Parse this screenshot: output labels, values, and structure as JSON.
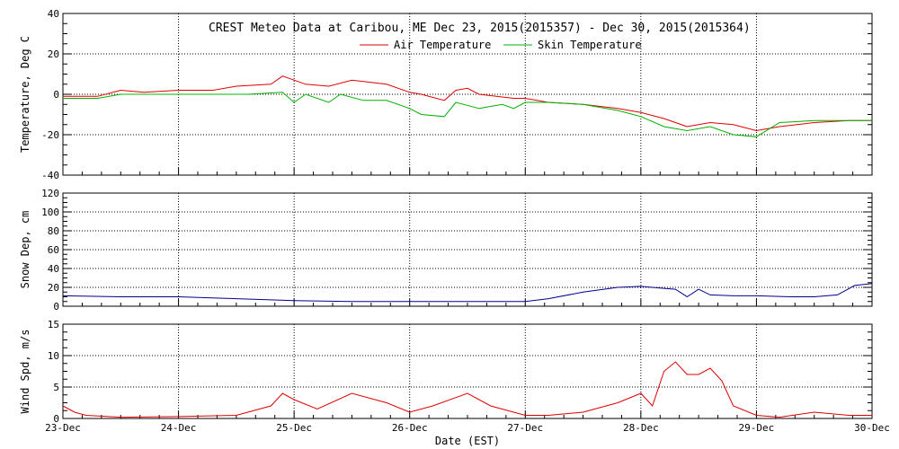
{
  "header": {
    "title": "CREST Meteo Data at Caribou, ME   Dec 23, 2015(2015357) - Dec 30, 2015(2015364)"
  },
  "legend": {
    "air_label": "Air Temperature",
    "skin_label": "Skin Temperature"
  },
  "colors": {
    "air": "#e00000",
    "skin": "#00b000",
    "snow": "#00008b",
    "wind": "#e00000",
    "axis": "#000000",
    "grid": "#000000",
    "background": "#ffffff"
  },
  "x_axis": {
    "label": "Date (EST)",
    "ticks": [
      "23-Dec",
      "24-Dec",
      "25-Dec",
      "26-Dec",
      "27-Dec",
      "28-Dec",
      "29-Dec",
      "30-Dec"
    ],
    "range": [
      0,
      7
    ]
  },
  "chart_data": [
    {
      "type": "line",
      "ylabel": "Temperature, Deg C",
      "ylim": [
        -40,
        40
      ],
      "yticks": [
        "40",
        "20",
        "0",
        "-20",
        "-40"
      ],
      "grid": true,
      "legend_position": "top-center",
      "series": [
        {
          "name": "Air Temperature",
          "x": [
            0,
            0.3,
            0.5,
            0.7,
            1.0,
            1.3,
            1.5,
            1.8,
            1.9,
            2.1,
            2.3,
            2.5,
            2.8,
            3.0,
            3.1,
            3.3,
            3.4,
            3.5,
            3.6,
            3.9,
            4.0,
            4.2,
            4.5,
            4.8,
            5.0,
            5.2,
            5.4,
            5.6,
            5.8,
            6.0,
            6.2,
            6.5,
            6.8,
            7.0
          ],
          "y": [
            -1,
            -1,
            2,
            1,
            2,
            2,
            4,
            5,
            9,
            5,
            4,
            7,
            5,
            1,
            0,
            -3,
            2,
            3,
            0,
            -2,
            -2,
            -4,
            -5,
            -7,
            -9,
            -12,
            -16,
            -14,
            -15,
            -18,
            -16,
            -14,
            -13,
            -13
          ]
        },
        {
          "name": "Skin Temperature",
          "x": [
            0,
            0.3,
            0.5,
            0.8,
            1.0,
            1.3,
            1.6,
            1.9,
            2.0,
            2.1,
            2.3,
            2.4,
            2.6,
            2.8,
            3.0,
            3.1,
            3.3,
            3.4,
            3.6,
            3.8,
            3.9,
            4.0,
            4.2,
            4.5,
            4.8,
            5.0,
            5.2,
            5.4,
            5.6,
            5.8,
            6.0,
            6.2,
            6.5,
            6.8,
            7.0
          ],
          "y": [
            -2,
            -2,
            0,
            0,
            0,
            0,
            0,
            1,
            -4,
            0,
            -4,
            0,
            -3,
            -3,
            -7,
            -10,
            -11,
            -4,
            -7,
            -5,
            -7,
            -4,
            -4,
            -5,
            -8,
            -11,
            -16,
            -18,
            -16,
            -20,
            -21,
            -14,
            -13,
            -13,
            -13
          ]
        }
      ]
    },
    {
      "type": "line",
      "ylabel": "Snow Dep, cm",
      "ylim": [
        0,
        120
      ],
      "yticks": [
        "120",
        "100",
        "80",
        "60",
        "40",
        "20",
        "0"
      ],
      "grid": true,
      "series": [
        {
          "x": [
            0,
            0.5,
            1.0,
            1.5,
            2.0,
            2.5,
            3.0,
            3.5,
            4.0,
            4.2,
            4.5,
            4.8,
            5.0,
            5.2,
            5.3,
            5.4,
            5.5,
            5.6,
            5.8,
            6.0,
            6.3,
            6.5,
            6.7,
            6.85,
            7.0
          ],
          "y": [
            11,
            10,
            10,
            8,
            6,
            5,
            5,
            5,
            5,
            8,
            15,
            20,
            21,
            19,
            18,
            10,
            18,
            12,
            11,
            11,
            10,
            10,
            12,
            22,
            24
          ]
        }
      ]
    },
    {
      "type": "line",
      "ylabel": "Wind Spd, m/s",
      "ylim": [
        0,
        15
      ],
      "yticks": [
        "15",
        "10",
        "5",
        "0"
      ],
      "grid": true,
      "series": [
        {
          "x": [
            0,
            0.1,
            0.2,
            0.5,
            1.0,
            1.5,
            1.8,
            1.9,
            2.0,
            2.2,
            2.5,
            2.8,
            3.0,
            3.2,
            3.5,
            3.7,
            3.9,
            4.0,
            4.2,
            4.5,
            4.8,
            5.0,
            5.1,
            5.2,
            5.3,
            5.4,
            5.5,
            5.6,
            5.7,
            5.8,
            6.0,
            6.2,
            6.5,
            6.8,
            7.0
          ],
          "y": [
            2,
            1,
            0.5,
            0.2,
            0.3,
            0.5,
            2,
            4,
            3,
            1.5,
            4,
            2.5,
            1,
            2,
            4,
            2,
            1,
            0.5,
            0.5,
            1,
            2.5,
            4,
            2,
            7.5,
            9,
            7,
            7,
            8,
            6,
            2,
            0.5,
            0.2,
            1,
            0.5,
            0.5
          ]
        }
      ]
    }
  ]
}
